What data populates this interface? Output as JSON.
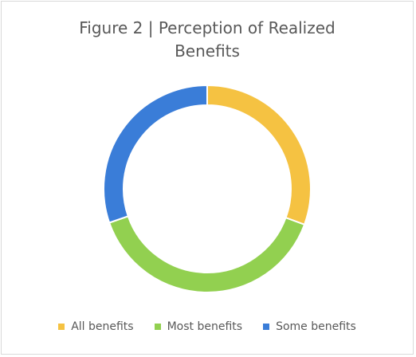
{
  "chart_data": {
    "type": "pie",
    "variant": "donut",
    "title_lines": [
      "Figure 2 | Perception of Realized",
      "Benefits"
    ],
    "categories": [
      "All benefits",
      "Most benefits",
      "Some benefits"
    ],
    "values": [
      30.6,
      39.1,
      30.3
    ],
    "colors": [
      "#f5c242",
      "#92d050",
      "#3a7dd8"
    ],
    "legend_position": "bottom",
    "start_angle": "top, clockwise"
  }
}
